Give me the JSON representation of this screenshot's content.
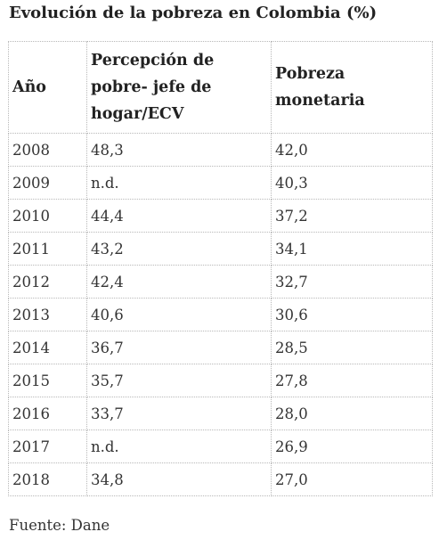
{
  "title": "Evolución de la pobreza en Colombia (%)",
  "table": {
    "headers": [
      "Año",
      "Percepción de pobre- jefe de hogar/ECV",
      "Pobreza monetaria"
    ],
    "rows": [
      [
        "2008",
        "48,3",
        "42,0"
      ],
      [
        "2009",
        "n.d.",
        "40,3"
      ],
      [
        "2010",
        "44,4",
        "37,2"
      ],
      [
        "2011",
        "43,2",
        "34,1"
      ],
      [
        "2012",
        "42,4",
        "32,7"
      ],
      [
        "2013",
        "40,6",
        "30,6"
      ],
      [
        "2014",
        "36,7",
        "28,5"
      ],
      [
        "2015",
        "35,7",
        "27,8"
      ],
      [
        "2016",
        "33,7",
        "28,0"
      ],
      [
        "2017",
        "n.d.",
        "26,9"
      ],
      [
        "2018",
        "34,8",
        "27,0"
      ]
    ]
  },
  "source": "Fuente: Dane"
}
